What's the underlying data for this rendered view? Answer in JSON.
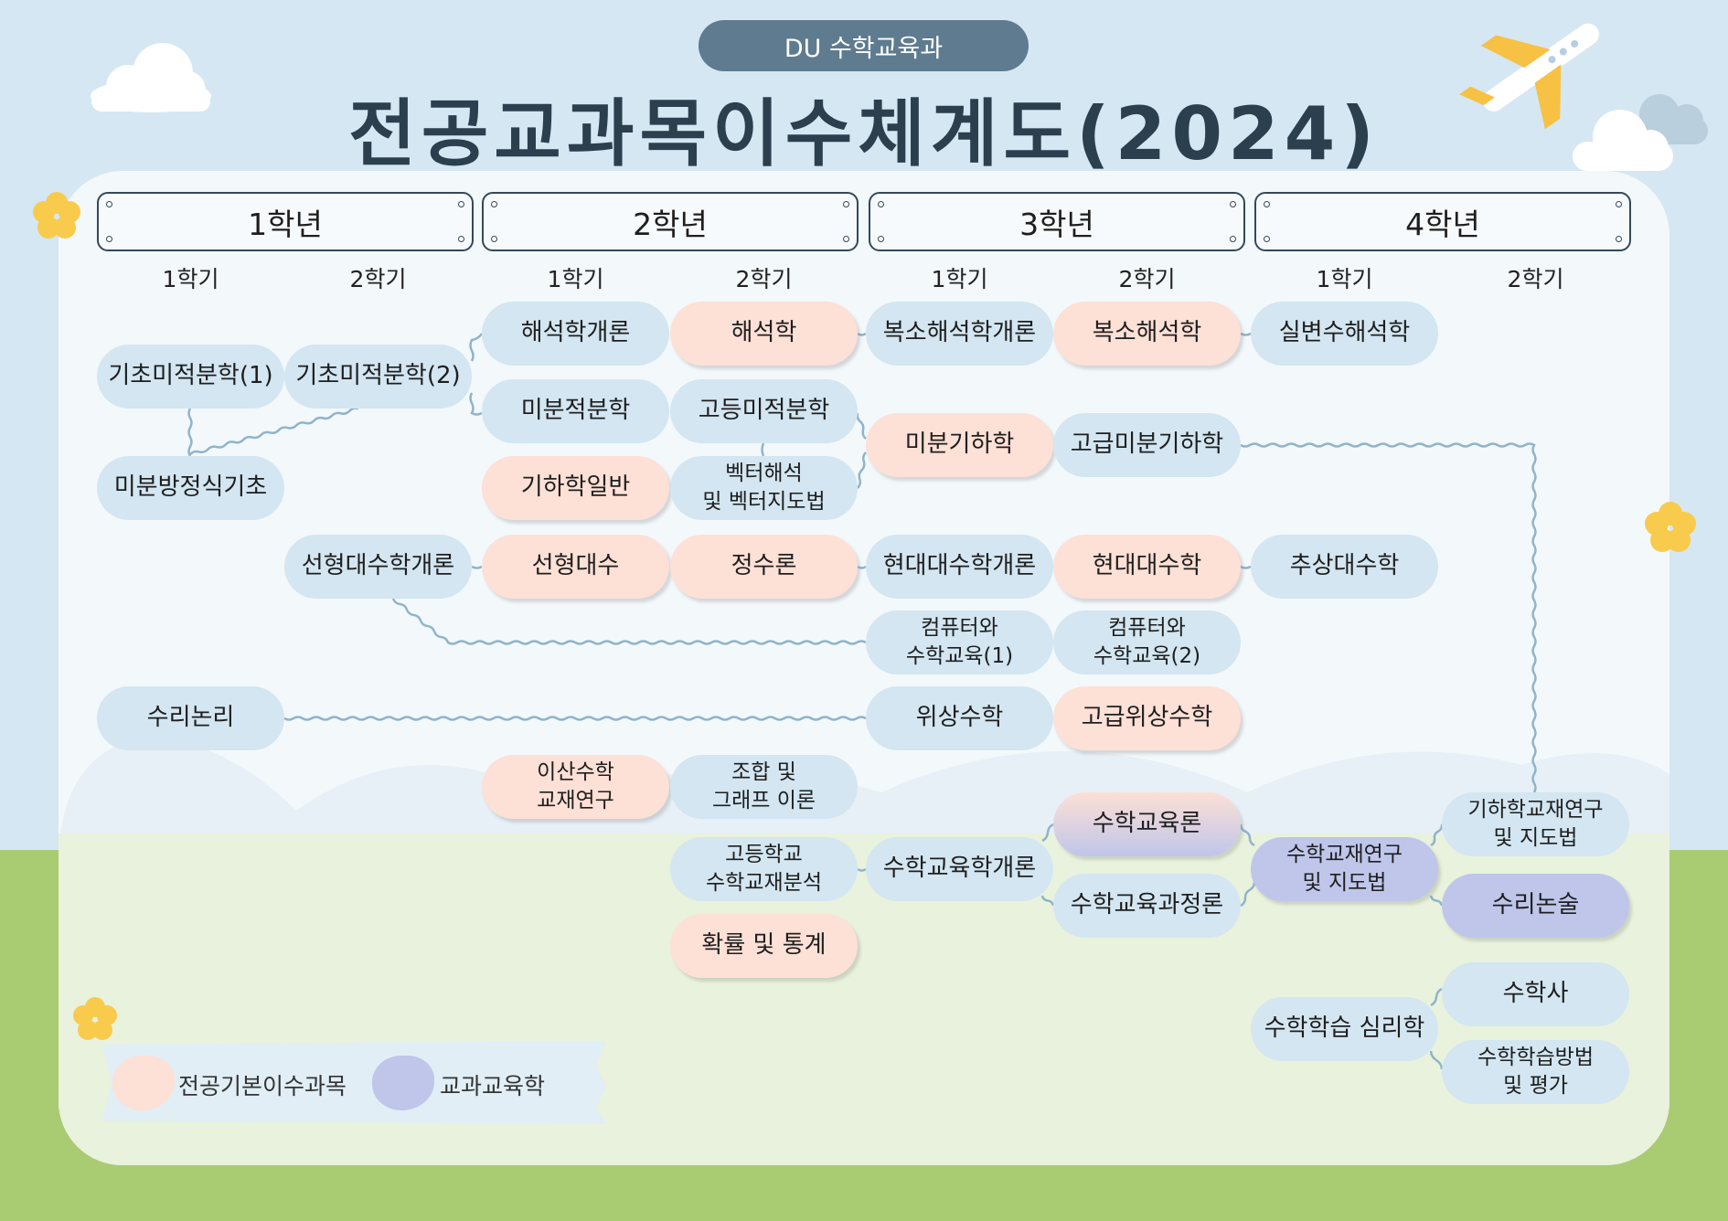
{
  "header": {
    "department": "DU 수학교육과",
    "title": "전공교과목이수체계도(2024)"
  },
  "years": [
    "1학년",
    "2학년",
    "3학년",
    "4학년"
  ],
  "semesters": [
    "1학기",
    "2학기",
    "1학기",
    "2학기",
    "1학기",
    "2학기",
    "1학기",
    "2학기"
  ],
  "colors": {
    "default": "#d3e6f1",
    "basic": "#fde0d6",
    "edu": "#bfc6ea",
    "sky": "#d5e7f2",
    "ground": "#a9cb72",
    "title": "#2b3f4f"
  },
  "nodes": [
    {
      "label": "기초미적분학(1)",
      "type": "default"
    },
    {
      "label": "기초미적분학(2)",
      "type": "default"
    },
    {
      "label": "미분방정식기초",
      "type": "default"
    },
    {
      "label": "해석학개론",
      "type": "default"
    },
    {
      "label": "미분적분학",
      "type": "default"
    },
    {
      "label": "기하학일반",
      "type": "basic"
    },
    {
      "label": "해석학",
      "type": "basic"
    },
    {
      "label": "고등미적분학",
      "type": "default"
    },
    {
      "label": "벡터해석 및 벡터지도법",
      "type": "default"
    },
    {
      "label": "복소해석학개론",
      "type": "default"
    },
    {
      "label": "미분기하학",
      "type": "basic"
    },
    {
      "label": "복소해석학",
      "type": "basic"
    },
    {
      "label": "고급미분기하학",
      "type": "default"
    },
    {
      "label": "실변수해석학",
      "type": "default"
    },
    {
      "label": "선형대수학개론",
      "type": "default"
    },
    {
      "label": "선형대수",
      "type": "basic"
    },
    {
      "label": "정수론",
      "type": "basic"
    },
    {
      "label": "현대대수학개론",
      "type": "default"
    },
    {
      "label": "현대대수학",
      "type": "basic"
    },
    {
      "label": "추상대수학",
      "type": "default"
    },
    {
      "label": "컴퓨터와 수학교육(1)",
      "type": "default"
    },
    {
      "label": "컴퓨터와 수학교육(2)",
      "type": "default"
    },
    {
      "label": "수리논리",
      "type": "default"
    },
    {
      "label": "위상수학",
      "type": "default"
    },
    {
      "label": "고급위상수학",
      "type": "basic"
    },
    {
      "label": "이산수학 교재연구",
      "type": "basic"
    },
    {
      "label": "조합 및 그래프 이론",
      "type": "default"
    },
    {
      "label": "수학교육론",
      "type": "both"
    },
    {
      "label": "고등학교 수학교재분석",
      "type": "default"
    },
    {
      "label": "수학교육학개론",
      "type": "default"
    },
    {
      "label": "수학교재연구 및 지도법",
      "type": "edu"
    },
    {
      "label": "기하학교재연구 및 지도법",
      "type": "default"
    },
    {
      "label": "수학교육과정론",
      "type": "default"
    },
    {
      "label": "수리논술",
      "type": "edu"
    },
    {
      "label": "확률 및 통계",
      "type": "basic"
    },
    {
      "label": "수학사",
      "type": "default"
    },
    {
      "label": "수학학습 심리학",
      "type": "default"
    },
    {
      "label": "수학학습방법 및 평가",
      "type": "default"
    }
  ],
  "legend": {
    "basic": "전공기본이수과목",
    "edu": "교과교육학"
  }
}
